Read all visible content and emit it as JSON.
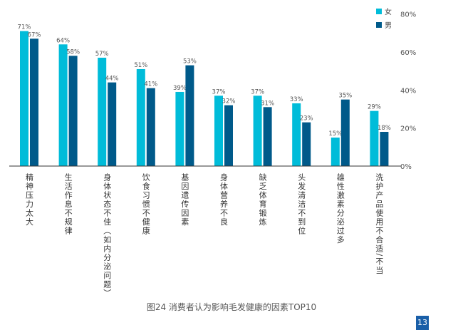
{
  "chart_data": {
    "type": "bar",
    "categories": [
      "精神压力太大",
      "生活作息不规律",
      "身体状态不佳（如内分泌问题）",
      "饮食习惯不健康",
      "基因遗传因素",
      "身体营养不良",
      "缺乏体育锻炼",
      "头发清洁不到位",
      "雄性激素分泌过多",
      "洗护产品使用不合适/不当"
    ],
    "series": [
      {
        "name": "女",
        "color": "#00bcd9",
        "values": [
          71,
          64,
          57,
          51,
          39,
          37,
          37,
          33,
          15,
          29
        ]
      },
      {
        "name": "男",
        "color": "#005a8a",
        "values": [
          67,
          58,
          44,
          41,
          53,
          32,
          31,
          23,
          35,
          18
        ]
      }
    ],
    "value_labels_female": [
      "71%",
      "64%",
      "57%",
      "51%",
      "39%",
      "37%",
      "37%",
      "33%",
      "15%",
      "29%"
    ],
    "value_labels_male": [
      "67%",
      "58%",
      "44%",
      "41%",
      "53%",
      "32%",
      "31%",
      "23%",
      "35%",
      "18%"
    ],
    "y_ticks": [
      "0%",
      "20%",
      "40%",
      "60%",
      "80%"
    ],
    "ylim": [
      0,
      80
    ],
    "y_axis_side": "right",
    "legend_placement": "top-right",
    "grid": false,
    "title": "图24  消费者认为影响毛发健康的因素TOP10"
  },
  "page_number": "13"
}
